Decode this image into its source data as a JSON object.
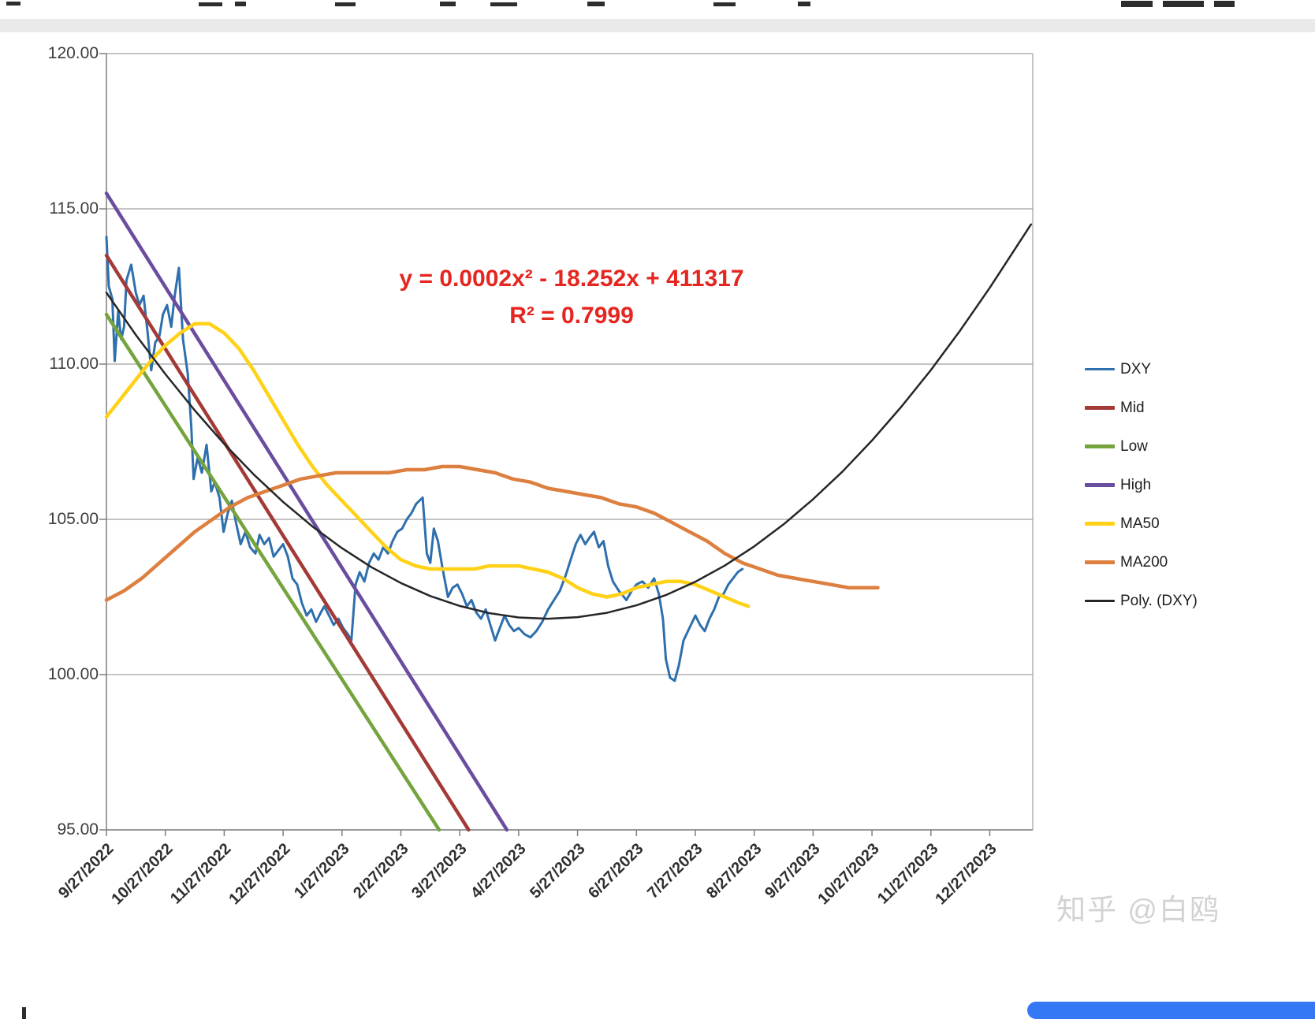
{
  "page": {
    "watermark": "知乎 @白鸥",
    "background_color": "#ffffff",
    "header_band_color": "#eaeaea",
    "footer_button_color": "#3478f6"
  },
  "chart_data": {
    "type": "line",
    "title": "",
    "x_unit": "months_since_first_tick",
    "grid": true,
    "legend_position": "right",
    "x_axis": {
      "labels": [
        "9/27/2022",
        "10/27/2022",
        "11/27/2022",
        "12/27/2022",
        "1/27/2023",
        "2/27/2023",
        "3/27/2023",
        "4/27/2023",
        "5/27/2023",
        "6/27/2023",
        "7/27/2023",
        "8/27/2023",
        "9/27/2023",
        "10/27/2023",
        "11/27/2023",
        "12/27/2023"
      ],
      "plot_max_months": 15.73
    },
    "y_axis": {
      "min": 95,
      "max": 120,
      "ticks": [
        {
          "value": 120,
          "label": "120.00"
        },
        {
          "value": 115,
          "label": "115.00"
        },
        {
          "value": 110,
          "label": "110.00"
        },
        {
          "value": 105,
          "label": "105.00"
        },
        {
          "value": 100,
          "label": "100.00"
        },
        {
          "value": 95,
          "label": "95.00"
        }
      ]
    },
    "annotation": {
      "equation": "y = 0.0002x² - 18.252x + 411317",
      "r_squared": "R² = 0.7999",
      "color": "#e52620"
    },
    "colors": {
      "gridline": "#a0a0a0",
      "axis": "#7f7f7f"
    },
    "series": [
      {
        "name": "DXY",
        "color": "#2e6fad",
        "width": 3,
        "points": [
          [
            0,
            114.1
          ],
          [
            0.04,
            112.5
          ],
          [
            0.1,
            112.1
          ],
          [
            0.14,
            110.1
          ],
          [
            0.2,
            111.7
          ],
          [
            0.25,
            110.8
          ],
          [
            0.3,
            111.2
          ],
          [
            0.34,
            112.7
          ],
          [
            0.42,
            113.2
          ],
          [
            0.5,
            112.3
          ],
          [
            0.56,
            111.9
          ],
          [
            0.63,
            112.2
          ],
          [
            0.7,
            111.0
          ],
          [
            0.76,
            109.8
          ],
          [
            0.83,
            110.7
          ],
          [
            0.9,
            110.9
          ],
          [
            0.96,
            111.6
          ],
          [
            1.03,
            111.9
          ],
          [
            1.1,
            111.2
          ],
          [
            1.16,
            112.2
          ],
          [
            1.23,
            113.1
          ],
          [
            1.3,
            110.8
          ],
          [
            1.38,
            109.7
          ],
          [
            1.44,
            108.0
          ],
          [
            1.48,
            106.3
          ],
          [
            1.55,
            107.0
          ],
          [
            1.62,
            106.5
          ],
          [
            1.7,
            107.4
          ],
          [
            1.78,
            105.9
          ],
          [
            1.84,
            106.2
          ],
          [
            1.92,
            105.7
          ],
          [
            1.99,
            104.6
          ],
          [
            2.06,
            105.2
          ],
          [
            2.13,
            105.6
          ],
          [
            2.2,
            104.9
          ],
          [
            2.28,
            104.2
          ],
          [
            2.36,
            104.6
          ],
          [
            2.44,
            104.1
          ],
          [
            2.53,
            103.9
          ],
          [
            2.6,
            104.5
          ],
          [
            2.68,
            104.2
          ],
          [
            2.76,
            104.4
          ],
          [
            2.84,
            103.8
          ],
          [
            2.92,
            104.0
          ],
          [
            3.0,
            104.2
          ],
          [
            3.08,
            103.8
          ],
          [
            3.16,
            103.1
          ],
          [
            3.24,
            102.9
          ],
          [
            3.32,
            102.3
          ],
          [
            3.4,
            101.9
          ],
          [
            3.48,
            102.1
          ],
          [
            3.56,
            101.7
          ],
          [
            3.64,
            102.0
          ],
          [
            3.7,
            102.2
          ],
          [
            3.78,
            101.9
          ],
          [
            3.86,
            101.6
          ],
          [
            3.94,
            101.8
          ],
          [
            4.02,
            101.5
          ],
          [
            4.1,
            101.3
          ],
          [
            4.16,
            101.1
          ],
          [
            4.23,
            102.9
          ],
          [
            4.3,
            103.3
          ],
          [
            4.38,
            103.0
          ],
          [
            4.46,
            103.6
          ],
          [
            4.54,
            103.9
          ],
          [
            4.62,
            103.7
          ],
          [
            4.7,
            104.1
          ],
          [
            4.78,
            103.9
          ],
          [
            4.86,
            104.3
          ],
          [
            4.94,
            104.6
          ],
          [
            5.02,
            104.7
          ],
          [
            5.1,
            105.0
          ],
          [
            5.18,
            105.2
          ],
          [
            5.26,
            105.5
          ],
          [
            5.37,
            105.7
          ],
          [
            5.44,
            103.9
          ],
          [
            5.5,
            103.6
          ],
          [
            5.56,
            104.7
          ],
          [
            5.63,
            104.3
          ],
          [
            5.7,
            103.5
          ],
          [
            5.8,
            102.5
          ],
          [
            5.88,
            102.8
          ],
          [
            5.96,
            102.9
          ],
          [
            6.04,
            102.6
          ],
          [
            6.12,
            102.2
          ],
          [
            6.2,
            102.4
          ],
          [
            6.28,
            102.0
          ],
          [
            6.36,
            101.8
          ],
          [
            6.44,
            102.1
          ],
          [
            6.52,
            101.6
          ],
          [
            6.6,
            101.1
          ],
          [
            6.68,
            101.5
          ],
          [
            6.76,
            101.9
          ],
          [
            6.84,
            101.6
          ],
          [
            6.92,
            101.4
          ],
          [
            7.0,
            101.5
          ],
          [
            7.1,
            101.3
          ],
          [
            7.2,
            101.2
          ],
          [
            7.3,
            101.4
          ],
          [
            7.4,
            101.7
          ],
          [
            7.5,
            102.1
          ],
          [
            7.6,
            102.4
          ],
          [
            7.7,
            102.7
          ],
          [
            7.8,
            103.2
          ],
          [
            7.9,
            103.8
          ],
          [
            7.97,
            104.2
          ],
          [
            8.05,
            104.5
          ],
          [
            8.13,
            104.2
          ],
          [
            8.2,
            104.4
          ],
          [
            8.28,
            104.6
          ],
          [
            8.36,
            104.1
          ],
          [
            8.44,
            104.3
          ],
          [
            8.52,
            103.5
          ],
          [
            8.6,
            103.0
          ],
          [
            8.7,
            102.7
          ],
          [
            8.83,
            102.4
          ],
          [
            8.92,
            102.7
          ],
          [
            9.0,
            102.9
          ],
          [
            9.1,
            103.0
          ],
          [
            9.2,
            102.8
          ],
          [
            9.3,
            103.1
          ],
          [
            9.38,
            102.6
          ],
          [
            9.45,
            101.8
          ],
          [
            9.5,
            100.5
          ],
          [
            9.57,
            99.9
          ],
          [
            9.65,
            99.8
          ],
          [
            9.72,
            100.3
          ],
          [
            9.8,
            101.1
          ],
          [
            9.9,
            101.5
          ],
          [
            10.0,
            101.9
          ],
          [
            10.08,
            101.6
          ],
          [
            10.16,
            101.4
          ],
          [
            10.24,
            101.8
          ],
          [
            10.32,
            102.1
          ],
          [
            10.4,
            102.5
          ],
          [
            10.48,
            102.6
          ],
          [
            10.56,
            102.9
          ],
          [
            10.64,
            103.1
          ],
          [
            10.72,
            103.3
          ],
          [
            10.8,
            103.4
          ]
        ]
      },
      {
        "name": "Mid",
        "color": "#a33a38",
        "width": 4.5,
        "points": [
          [
            0,
            113.5
          ],
          [
            6.15,
            95.0
          ]
        ]
      },
      {
        "name": "Low",
        "color": "#75a33e",
        "width": 4.5,
        "points": [
          [
            0,
            111.6
          ],
          [
            5.65,
            95.0
          ]
        ]
      },
      {
        "name": "High",
        "color": "#6a4d9e",
        "width": 4.5,
        "points": [
          [
            0,
            115.5
          ],
          [
            6.8,
            95.0
          ]
        ]
      },
      {
        "name": "MA50",
        "color": "#ffd117",
        "width": 4.5,
        "points": [
          [
            0,
            108.3
          ],
          [
            0.25,
            108.9
          ],
          [
            0.5,
            109.5
          ],
          [
            0.75,
            110.1
          ],
          [
            1.0,
            110.6
          ],
          [
            1.25,
            111.0
          ],
          [
            1.5,
            111.3
          ],
          [
            1.75,
            111.3
          ],
          [
            2.0,
            111.0
          ],
          [
            2.25,
            110.5
          ],
          [
            2.5,
            109.8
          ],
          [
            2.75,
            109.0
          ],
          [
            3.0,
            108.2
          ],
          [
            3.25,
            107.4
          ],
          [
            3.5,
            106.7
          ],
          [
            3.75,
            106.1
          ],
          [
            4.0,
            105.6
          ],
          [
            4.25,
            105.1
          ],
          [
            4.5,
            104.6
          ],
          [
            4.75,
            104.1
          ],
          [
            5.0,
            103.7
          ],
          [
            5.25,
            103.5
          ],
          [
            5.5,
            103.4
          ],
          [
            5.75,
            103.4
          ],
          [
            6.0,
            103.4
          ],
          [
            6.25,
            103.4
          ],
          [
            6.5,
            103.5
          ],
          [
            6.75,
            103.5
          ],
          [
            7.0,
            103.5
          ],
          [
            7.25,
            103.4
          ],
          [
            7.5,
            103.3
          ],
          [
            7.75,
            103.1
          ],
          [
            8.0,
            102.8
          ],
          [
            8.25,
            102.6
          ],
          [
            8.5,
            102.5
          ],
          [
            8.75,
            102.6
          ],
          [
            9.0,
            102.8
          ],
          [
            9.25,
            102.9
          ],
          [
            9.5,
            103.0
          ],
          [
            9.75,
            103.0
          ],
          [
            10.0,
            102.9
          ],
          [
            10.25,
            102.7
          ],
          [
            10.5,
            102.5
          ],
          [
            10.75,
            102.3
          ],
          [
            10.9,
            102.2
          ]
        ]
      },
      {
        "name": "MA200",
        "color": "#dd7f3f",
        "width": 4.5,
        "points": [
          [
            0,
            102.4
          ],
          [
            0.3,
            102.7
          ],
          [
            0.6,
            103.1
          ],
          [
            0.9,
            103.6
          ],
          [
            1.2,
            104.1
          ],
          [
            1.5,
            104.6
          ],
          [
            1.8,
            105.0
          ],
          [
            2.1,
            105.4
          ],
          [
            2.4,
            105.7
          ],
          [
            2.7,
            105.9
          ],
          [
            3.0,
            106.1
          ],
          [
            3.3,
            106.3
          ],
          [
            3.6,
            106.4
          ],
          [
            3.9,
            106.5
          ],
          [
            4.2,
            106.5
          ],
          [
            4.5,
            106.5
          ],
          [
            4.8,
            106.5
          ],
          [
            5.1,
            106.6
          ],
          [
            5.4,
            106.6
          ],
          [
            5.7,
            106.7
          ],
          [
            6.0,
            106.7
          ],
          [
            6.3,
            106.6
          ],
          [
            6.6,
            106.5
          ],
          [
            6.9,
            106.3
          ],
          [
            7.2,
            106.2
          ],
          [
            7.5,
            106.0
          ],
          [
            7.8,
            105.9
          ],
          [
            8.1,
            105.8
          ],
          [
            8.4,
            105.7
          ],
          [
            8.7,
            105.5
          ],
          [
            9.0,
            105.4
          ],
          [
            9.3,
            105.2
          ],
          [
            9.6,
            104.9
          ],
          [
            9.9,
            104.6
          ],
          [
            10.2,
            104.3
          ],
          [
            10.5,
            103.9
          ],
          [
            10.8,
            103.6
          ],
          [
            11.1,
            103.4
          ],
          [
            11.4,
            103.2
          ],
          [
            11.7,
            103.1
          ],
          [
            12.0,
            103.0
          ],
          [
            12.3,
            102.9
          ],
          [
            12.6,
            102.8
          ],
          [
            12.9,
            102.8
          ],
          [
            13.1,
            102.8
          ]
        ]
      },
      {
        "name": "Poly. (DXY)",
        "color": "#262626",
        "width": 2.5,
        "points": [
          [
            0,
            112.3
          ],
          [
            0.5,
            110.94
          ],
          [
            1,
            109.68
          ],
          [
            1.5,
            108.51
          ],
          [
            2,
            107.43
          ],
          [
            2.5,
            106.45
          ],
          [
            3,
            105.56
          ],
          [
            3.5,
            104.77
          ],
          [
            4,
            104.07
          ],
          [
            4.5,
            103.46
          ],
          [
            5,
            102.95
          ],
          [
            5.5,
            102.53
          ],
          [
            6,
            102.21
          ],
          [
            6.5,
            101.98
          ],
          [
            7,
            101.84
          ],
          [
            7.5,
            101.8
          ],
          [
            8,
            101.85
          ],
          [
            8.5,
            101.99
          ],
          [
            9,
            102.23
          ],
          [
            9.5,
            102.56
          ],
          [
            10,
            102.99
          ],
          [
            10.5,
            103.51
          ],
          [
            11,
            104.13
          ],
          [
            11.5,
            104.84
          ],
          [
            12,
            105.65
          ],
          [
            12.5,
            106.54
          ],
          [
            13,
            107.54
          ],
          [
            13.5,
            108.63
          ],
          [
            14,
            109.81
          ],
          [
            14.5,
            111.09
          ],
          [
            15,
            112.46
          ],
          [
            15.7,
            114.5
          ]
        ]
      }
    ]
  }
}
